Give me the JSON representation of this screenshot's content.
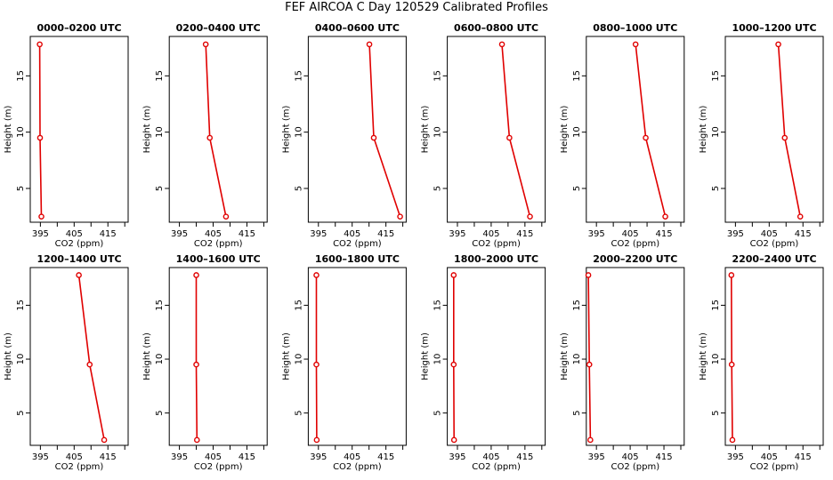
{
  "title": "FEF AIRCOA C  Day 120529  Calibrated Profiles",
  "colors": {
    "line": "#e00000",
    "axis": "#000000"
  },
  "axes": {
    "xlabel": "CO2 (ppm)",
    "ylabel": "Height (m)",
    "xlim": [
      392,
      421
    ],
    "ylim": [
      2,
      18.5
    ],
    "xticks": [
      395,
      400,
      405,
      410,
      415,
      420
    ],
    "xticklabels": [
      "395",
      "",
      "405",
      "",
      "415",
      ""
    ],
    "yticks": [
      5,
      10,
      15
    ],
    "yticklabels": [
      "5",
      "10",
      "15"
    ]
  },
  "chart_data": [
    {
      "type": "line",
      "title": "0000–0200 UTC",
      "xlabel": "CO2 (ppm)",
      "ylabel": "Height (m)",
      "series": [
        {
          "x": [
            394.8,
            394.9,
            395.3
          ],
          "y": [
            17.8,
            9.5,
            2.5
          ]
        }
      ]
    },
    {
      "type": "line",
      "title": "0200–0400 UTC",
      "xlabel": "CO2 (ppm)",
      "ylabel": "Height (m)",
      "series": [
        {
          "x": [
            402.8,
            404.0,
            408.8
          ],
          "y": [
            17.8,
            9.5,
            2.5
          ]
        }
      ]
    },
    {
      "type": "line",
      "title": "0400–0600 UTC",
      "xlabel": "CO2 (ppm)",
      "ylabel": "Height (m)",
      "series": [
        {
          "x": [
            410.1,
            411.4,
            419.2
          ],
          "y": [
            17.8,
            9.5,
            2.5
          ]
        }
      ]
    },
    {
      "type": "line",
      "title": "0600–0800 UTC",
      "xlabel": "CO2 (ppm)",
      "ylabel": "Height (m)",
      "series": [
        {
          "x": [
            408.2,
            410.4,
            416.5
          ],
          "y": [
            17.8,
            9.5,
            2.5
          ]
        }
      ]
    },
    {
      "type": "line",
      "title": "0800–1000 UTC",
      "xlabel": "CO2 (ppm)",
      "ylabel": "Height (m)",
      "series": [
        {
          "x": [
            406.6,
            409.6,
            415.4
          ],
          "y": [
            17.8,
            9.5,
            2.5
          ]
        }
      ]
    },
    {
      "type": "line",
      "title": "1000–1200 UTC",
      "xlabel": "CO2 (ppm)",
      "ylabel": "Height (m)",
      "series": [
        {
          "x": [
            407.7,
            409.6,
            414.2
          ],
          "y": [
            17.8,
            9.5,
            2.5
          ]
        }
      ]
    },
    {
      "type": "line",
      "title": "1200–1400 UTC",
      "xlabel": "CO2 (ppm)",
      "ylabel": "Height (m)",
      "series": [
        {
          "x": [
            406.4,
            409.6,
            413.9
          ],
          "y": [
            17.8,
            9.5,
            2.5
          ]
        }
      ]
    },
    {
      "type": "line",
      "title": "1400–1600 UTC",
      "xlabel": "CO2 (ppm)",
      "ylabel": "Height (m)",
      "series": [
        {
          "x": [
            400.0,
            400.0,
            400.2
          ],
          "y": [
            17.8,
            9.5,
            2.5
          ]
        }
      ]
    },
    {
      "type": "line",
      "title": "1600–1800 UTC",
      "xlabel": "CO2 (ppm)",
      "ylabel": "Height (m)",
      "series": [
        {
          "x": [
            394.4,
            394.4,
            394.5
          ],
          "y": [
            17.8,
            9.5,
            2.5
          ]
        }
      ]
    },
    {
      "type": "line",
      "title": "1800–2000 UTC",
      "xlabel": "CO2 (ppm)",
      "ylabel": "Height (m)",
      "series": [
        {
          "x": [
            393.9,
            393.9,
            394.0
          ],
          "y": [
            17.8,
            9.5,
            2.5
          ]
        }
      ]
    },
    {
      "type": "line",
      "title": "2000–2200 UTC",
      "xlabel": "CO2 (ppm)",
      "ylabel": "Height (m)",
      "series": [
        {
          "x": [
            392.6,
            392.9,
            393.2
          ],
          "y": [
            17.8,
            9.5,
            2.5
          ]
        }
      ]
    },
    {
      "type": "line",
      "title": "2200–2400 UTC",
      "xlabel": "CO2 (ppm)",
      "ylabel": "Height (m)",
      "series": [
        {
          "x": [
            393.8,
            393.9,
            394.1
          ],
          "y": [
            17.8,
            9.5,
            2.5
          ]
        }
      ]
    }
  ]
}
